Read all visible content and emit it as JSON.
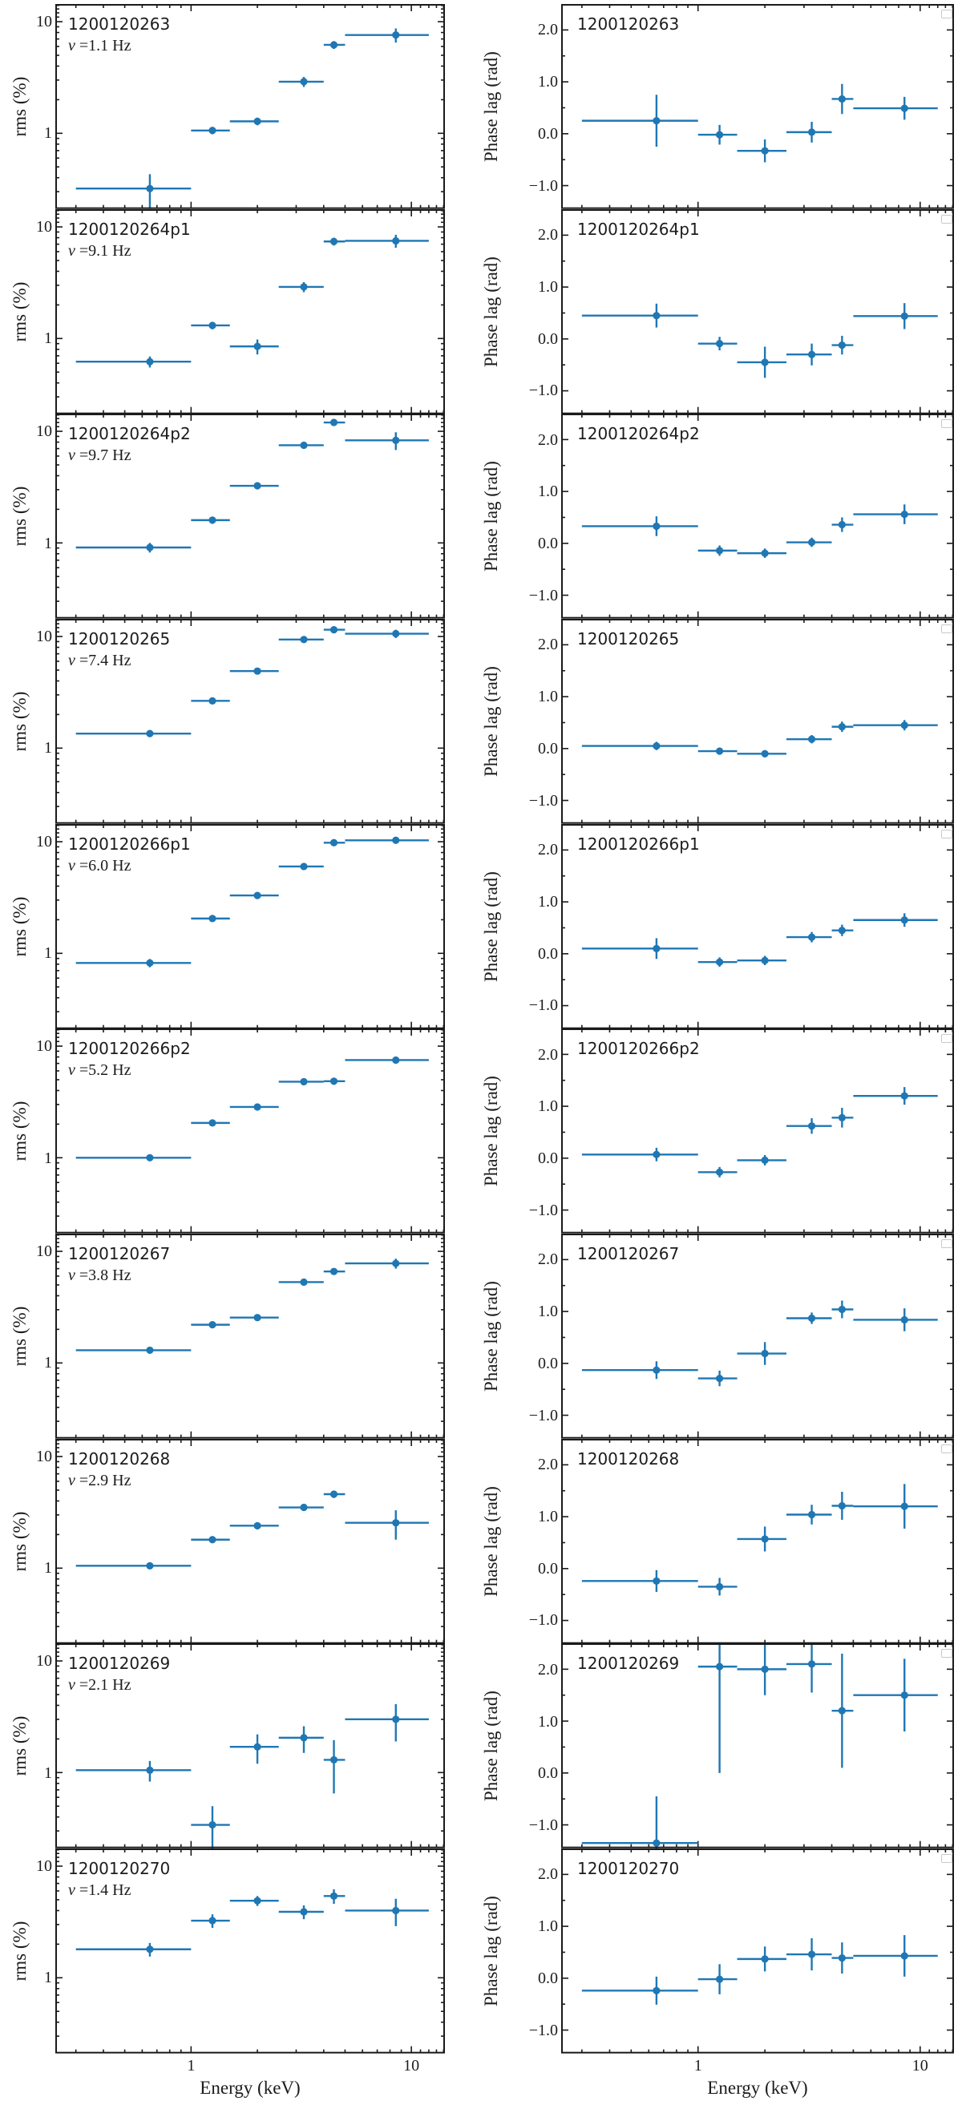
{
  "figure": {
    "background": "#ffffff",
    "accent_color": "#1f77b4",
    "frame_color": "#1a1a1a",
    "xlabel": "Energy (keV)",
    "x_tick_labels": [
      "1",
      "10"
    ],
    "left_column": {
      "ylabel": "rms (%)",
      "y_tick_labels": [
        "10",
        "1"
      ],
      "scale": "log"
    },
    "right_column": {
      "ylabel": "Phase lag (rad)",
      "y_tick_labels": [
        "2.0",
        "1.0",
        "0.0",
        "−1.0"
      ],
      "scale": "linear"
    }
  },
  "chart_data": {
    "type": "scatter",
    "subtype": "errorbar grid, 10 rows x 2 columns (rms spectrum | phase-lag spectrum), shared log energy axis",
    "x": {
      "label": "Energy (keV)",
      "scale": "log",
      "lim": [
        0.242,
        14.2
      ],
      "centers_keV": [
        0.65,
        1.25,
        2.0,
        3.25,
        4.45,
        8.5
      ],
      "band_lo_keV": [
        0.3,
        1.0,
        1.5,
        2.5,
        4.0,
        5.0
      ],
      "band_hi_keV": [
        1.0,
        1.5,
        2.5,
        4.0,
        5.0,
        12.0
      ]
    },
    "rms_axis": {
      "label": "rms (%)",
      "scale": "log",
      "lim": [
        0.21,
        14.4
      ],
      "major_ticks": [
        1,
        10
      ]
    },
    "lag_axis": {
      "label": "Phase lag (rad)",
      "scale": "linear",
      "lim": [
        -1.45,
        2.5
      ],
      "major_ticks": [
        -1.0,
        0.0,
        1.0,
        2.0
      ]
    },
    "legend": "empty legend box at top-right of every phase-lag panel",
    "rows": [
      {
        "obsid": "1200120263",
        "nu_label": "ν =1.1 Hz",
        "nu_hz": 1.1,
        "rms": [
          0.32,
          1.06,
          1.28,
          2.9,
          6.2,
          7.6
        ],
        "rms_err": [
          0.11,
          0.08,
          0.1,
          0.3,
          0.5,
          1.1
        ],
        "lag": [
          0.25,
          -0.02,
          -0.33,
          0.03,
          0.67,
          0.49
        ],
        "lag_err": [
          0.5,
          0.19,
          0.22,
          0.2,
          0.29,
          0.22
        ]
      },
      {
        "obsid": "1200120264p1",
        "nu_label": "ν =9.1 Hz",
        "nu_hz": 9.1,
        "rms": [
          0.62,
          1.31,
          0.85,
          2.9,
          7.4,
          7.5
        ],
        "rms_err": [
          0.07,
          0.1,
          0.13,
          0.3,
          0.6,
          1.0
        ],
        "lag": [
          0.45,
          -0.09,
          -0.45,
          -0.3,
          -0.12,
          0.44
        ],
        "lag_err": [
          0.23,
          0.13,
          0.3,
          0.21,
          0.18,
          0.25
        ]
      },
      {
        "obsid": "1200120264p2",
        "nu_label": "ν =9.7 Hz",
        "nu_hz": 9.7,
        "rms": [
          0.91,
          1.6,
          3.25,
          7.5,
          12.0,
          8.3
        ],
        "rms_err": [
          0.09,
          0.12,
          0.22,
          0.45,
          0.8,
          1.5
        ],
        "lag": [
          0.33,
          -0.14,
          -0.19,
          0.02,
          0.36,
          0.56
        ],
        "lag_err": [
          0.19,
          0.1,
          0.09,
          0.09,
          0.14,
          0.19
        ]
      },
      {
        "obsid": "1200120265",
        "nu_label": "ν =7.4 Hz",
        "nu_hz": 7.4,
        "rms": [
          1.35,
          2.65,
          4.9,
          9.4,
          11.5,
          10.6
        ],
        "rms_err": [
          0.07,
          0.12,
          0.25,
          0.5,
          0.7,
          0.9
        ],
        "lag": [
          0.05,
          -0.05,
          -0.1,
          0.18,
          0.42,
          0.45
        ],
        "lag_err": [
          0.08,
          0.07,
          0.07,
          0.08,
          0.1,
          0.1
        ]
      },
      {
        "obsid": "1200120266p1",
        "nu_label": "ν =6.0 Hz",
        "nu_hz": 6.0,
        "rms": [
          0.82,
          2.05,
          3.3,
          6.0,
          9.8,
          10.3
        ],
        "rms_err": [
          0.07,
          0.1,
          0.16,
          0.3,
          0.5,
          0.6
        ],
        "lag": [
          0.1,
          -0.16,
          -0.13,
          0.32,
          0.45,
          0.65
        ],
        "lag_err": [
          0.2,
          0.09,
          0.09,
          0.1,
          0.11,
          0.13
        ]
      },
      {
        "obsid": "1200120266p2",
        "nu_label": "ν =5.2 Hz",
        "nu_hz": 5.2,
        "rms": [
          1.0,
          2.05,
          2.85,
          4.8,
          4.85,
          7.5
        ],
        "rms_err": [
          0.06,
          0.1,
          0.13,
          0.25,
          0.35,
          0.5
        ],
        "lag": [
          0.07,
          -0.27,
          -0.04,
          0.62,
          0.78,
          1.2
        ],
        "lag_err": [
          0.13,
          0.1,
          0.1,
          0.15,
          0.19,
          0.17
        ]
      },
      {
        "obsid": "1200120267",
        "nu_label": "ν =3.8 Hz",
        "nu_hz": 3.8,
        "rms": [
          1.3,
          2.2,
          2.55,
          5.3,
          6.6,
          7.8
        ],
        "rms_err": [
          0.07,
          0.13,
          0.16,
          0.3,
          0.45,
          0.8
        ],
        "lag": [
          -0.13,
          -0.29,
          0.19,
          0.87,
          1.04,
          0.84
        ],
        "lag_err": [
          0.17,
          0.15,
          0.22,
          0.11,
          0.17,
          0.22
        ]
      },
      {
        "obsid": "1200120268",
        "nu_label": "ν =2.9 Hz",
        "nu_hz": 2.9,
        "rms": [
          1.05,
          1.8,
          2.4,
          3.5,
          4.6,
          2.55
        ],
        "rms_err": [
          0.06,
          0.12,
          0.18,
          0.25,
          0.35,
          0.75
        ],
        "lag": [
          -0.24,
          -0.35,
          0.57,
          1.04,
          1.21,
          1.2
        ],
        "lag_err": [
          0.21,
          0.17,
          0.24,
          0.19,
          0.27,
          0.43
        ]
      },
      {
        "obsid": "1200120269",
        "nu_label": "ν =2.1 Hz",
        "nu_hz": 2.1,
        "rms": [
          1.05,
          0.34,
          1.7,
          2.05,
          1.3,
          3.0
        ],
        "rms_err": [
          0.22,
          0.16,
          0.5,
          0.55,
          0.65,
          1.1
        ],
        "lag": [
          -1.35,
          2.05,
          2.0,
          2.1,
          1.2,
          1.5
        ],
        "lag_err": [
          0.9,
          2.05,
          0.5,
          0.55,
          1.1,
          0.7
        ]
      },
      {
        "obsid": "1200120270",
        "nu_label": "ν =1.4 Hz",
        "nu_hz": 1.4,
        "rms": [
          1.8,
          3.25,
          4.9,
          3.9,
          5.4,
          4.0
        ],
        "rms_err": [
          0.25,
          0.45,
          0.5,
          0.55,
          0.8,
          1.1
        ],
        "lag": [
          -0.24,
          -0.02,
          0.37,
          0.46,
          0.39,
          0.43
        ],
        "lag_err": [
          0.27,
          0.29,
          0.24,
          0.31,
          0.3,
          0.4
        ]
      }
    ]
  }
}
